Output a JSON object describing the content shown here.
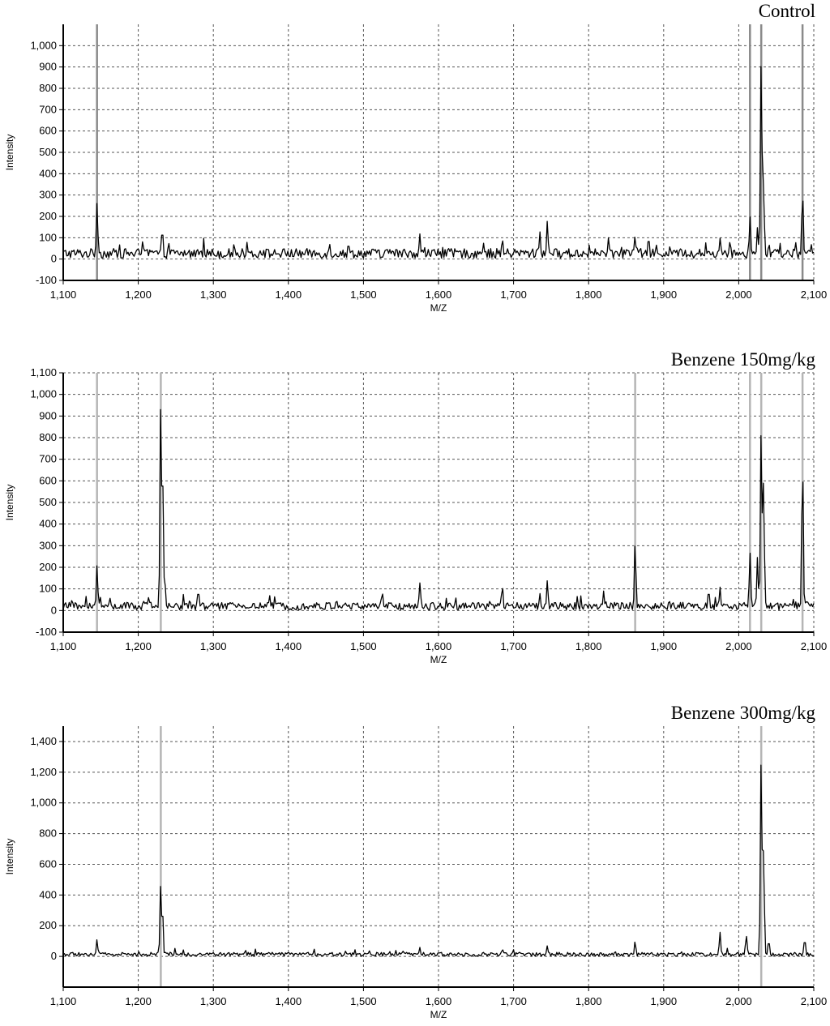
{
  "chart_data": [
    {
      "type": "line",
      "title": "Control",
      "xlabel": "M/Z",
      "ylabel": "Intensity",
      "xlim": [
        1100,
        2100
      ],
      "ylim": [
        -100,
        1100
      ],
      "x_ticks": [
        1100,
        1200,
        1300,
        1400,
        1500,
        1600,
        1700,
        1800,
        1900,
        2000,
        2100
      ],
      "x_tick_labels": [
        "1,100",
        "1,200",
        "1,300",
        "1,400",
        "1,500",
        "1,600",
        "1,700",
        "1,800",
        "1,900",
        "2,000",
        "2,100"
      ],
      "y_ticks": [
        -100,
        0,
        100,
        200,
        300,
        400,
        500,
        600,
        700,
        800,
        900,
        1000
      ],
      "y_tick_labels": [
        "-100",
        "0",
        "100",
        "200",
        "300",
        "400",
        "500",
        "600",
        "700",
        "800",
        "900",
        "1,000"
      ],
      "grid": true,
      "series": [
        {
          "peaks": [
            [
              1145,
              265
            ],
            [
              1232,
              150
            ],
            [
              1283,
              40
            ],
            [
              1345,
              80
            ],
            [
              1455,
              70
            ],
            [
              1480,
              80
            ],
            [
              1575,
              120
            ],
            [
              1685,
              100
            ],
            [
              1735,
              130
            ],
            [
              1745,
              180
            ],
            [
              1862,
              110
            ],
            [
              1880,
              110
            ],
            [
              1890,
              70
            ],
            [
              1975,
              100
            ],
            [
              2015,
              200
            ],
            [
              2025,
              150
            ],
            [
              2030,
              970
            ],
            [
              2033,
              360
            ],
            [
              2085,
              320
            ]
          ],
          "baseline": 20,
          "noise": 45
        }
      ],
      "marker_lines_x": [
        1145,
        2015,
        2030,
        2085
      ]
    },
    {
      "type": "line",
      "title": "Benzene 150mg/kg",
      "xlabel": "M/Z",
      "ylabel": "Intensity",
      "xlim": [
        1100,
        2100
      ],
      "ylim": [
        -100,
        1100
      ],
      "x_ticks": [
        1100,
        1200,
        1300,
        1400,
        1500,
        1600,
        1700,
        1800,
        1900,
        2000,
        2100
      ],
      "x_tick_labels": [
        "1,100",
        "1,200",
        "1,300",
        "1,400",
        "1,500",
        "1,600",
        "1,700",
        "1,800",
        "1,900",
        "2,000",
        "2,100"
      ],
      "y_ticks": [
        -100,
        0,
        100,
        200,
        300,
        400,
        500,
        600,
        700,
        800,
        900,
        1000,
        1100
      ],
      "y_tick_labels": [
        "-100",
        "0",
        "100",
        "200",
        "300",
        "400",
        "500",
        "600",
        "700",
        "800",
        "900",
        "1,000",
        "1,100"
      ],
      "grid": true,
      "series": [
        {
          "peaks": [
            [
              1145,
              210
            ],
            [
              1230,
              1000
            ],
            [
              1232,
              770
            ],
            [
              1235,
              180
            ],
            [
              1280,
              100
            ],
            [
              1375,
              70
            ],
            [
              1525,
              90
            ],
            [
              1575,
              130
            ],
            [
              1685,
              120
            ],
            [
              1735,
              80
            ],
            [
              1745,
              140
            ],
            [
              1820,
              90
            ],
            [
              1862,
              320
            ],
            [
              1960,
              100
            ],
            [
              1975,
              110
            ],
            [
              2015,
              270
            ],
            [
              2025,
              250
            ],
            [
              2030,
              870
            ],
            [
              2033,
              600
            ],
            [
              2085,
              700
            ]
          ],
          "baseline": 15,
          "noise": 35
        }
      ],
      "marker_lines_x": [
        1145,
        1230,
        1862,
        2015,
        2030,
        2085
      ]
    },
    {
      "type": "line",
      "title": "Benzene 300mg/kg",
      "xlabel": "M/Z",
      "ylabel": "Intensity",
      "xlim": [
        1100,
        2100
      ],
      "ylim": [
        -200,
        1500
      ],
      "x_ticks": [
        1100,
        1200,
        1300,
        1400,
        1500,
        1600,
        1700,
        1800,
        1900,
        2000,
        2100
      ],
      "x_tick_labels": [
        "1,100",
        "1,200",
        "1,300",
        "1,400",
        "1,500",
        "1,600",
        "1,700",
        "1,800",
        "1,900",
        "2,000",
        "2,100"
      ],
      "y_ticks": [
        0,
        200,
        400,
        600,
        800,
        1000,
        1200,
        1400
      ],
      "y_tick_labels": [
        "0",
        "200",
        "400",
        "600",
        "800",
        "1,000",
        "1,200",
        "1,400"
      ],
      "grid": true,
      "series": [
        {
          "peaks": [
            [
              1145,
              110
            ],
            [
              1230,
              490
            ],
            [
              1232,
              350
            ],
            [
              1575,
              60
            ],
            [
              1685,
              50
            ],
            [
              1745,
              70
            ],
            [
              1862,
              100
            ],
            [
              1975,
              160
            ],
            [
              2010,
              140
            ],
            [
              2030,
              1340
            ],
            [
              2033,
              700
            ],
            [
              2040,
              110
            ],
            [
              2088,
              120
            ]
          ],
          "baseline": 10,
          "noise": 25
        }
      ],
      "marker_lines_x": [
        1230,
        2030
      ]
    }
  ]
}
